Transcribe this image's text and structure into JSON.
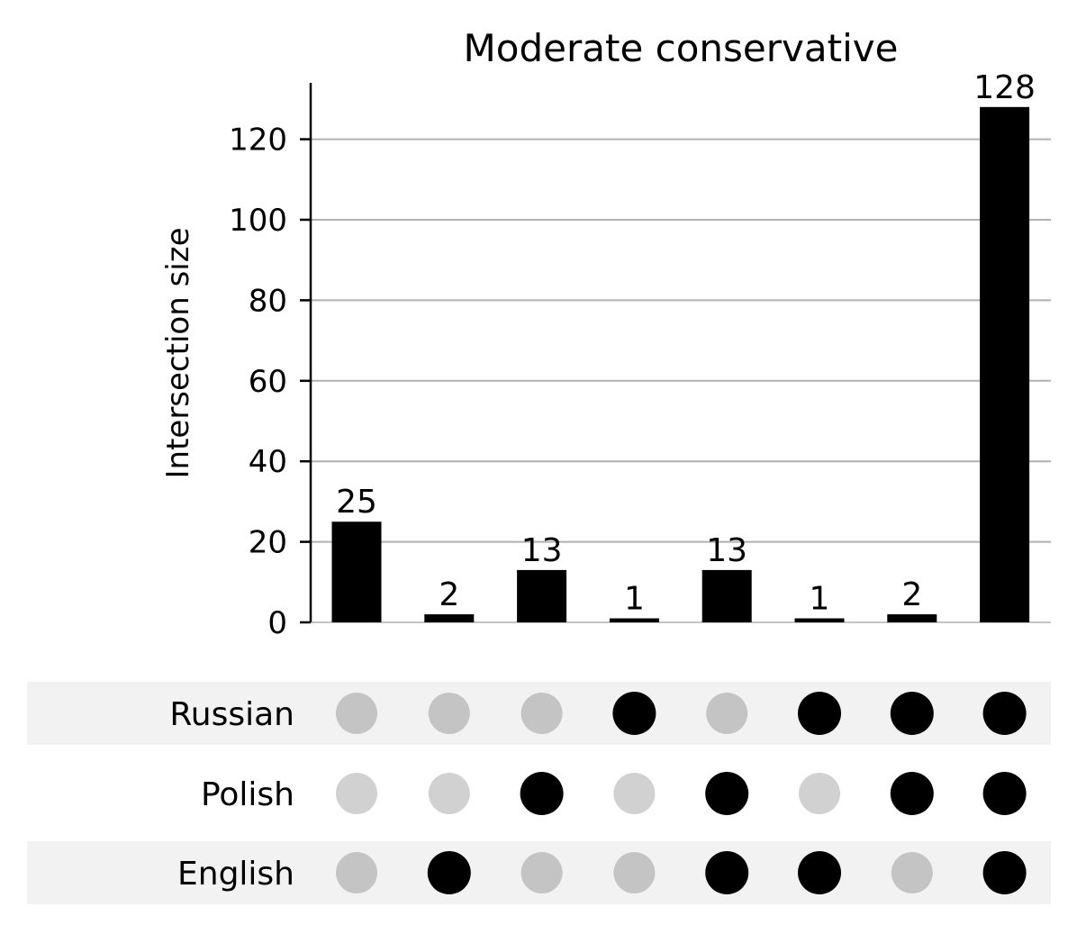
{
  "chart_data": {
    "type": "bar",
    "subtype": "upset",
    "title": "Moderate conservative",
    "ylabel": "Intersection size",
    "xlabel": "",
    "ylim": [
      0,
      134
    ],
    "yticks": [
      0,
      20,
      40,
      60,
      80,
      100,
      120
    ],
    "grid": true,
    "sets": [
      "Russian",
      "Polish",
      "English"
    ],
    "intersections": [
      {
        "value": 25,
        "members": {
          "Russian": false,
          "Polish": false,
          "English": false
        }
      },
      {
        "value": 2,
        "members": {
          "Russian": false,
          "Polish": false,
          "English": true
        }
      },
      {
        "value": 13,
        "members": {
          "Russian": false,
          "Polish": true,
          "English": false
        }
      },
      {
        "value": 1,
        "members": {
          "Russian": true,
          "Polish": false,
          "English": false
        }
      },
      {
        "value": 13,
        "members": {
          "Russian": false,
          "Polish": true,
          "English": true
        }
      },
      {
        "value": 1,
        "members": {
          "Russian": true,
          "Polish": false,
          "English": true
        }
      },
      {
        "value": 2,
        "members": {
          "Russian": true,
          "Polish": true,
          "English": false
        }
      },
      {
        "value": 128,
        "members": {
          "Russian": true,
          "Polish": true,
          "English": true
        }
      }
    ],
    "colors": {
      "bar": "#000000",
      "dot_active": "#000000",
      "dot_inactive_shaded_row": "#c4c4c4",
      "dot_inactive_plain_row": "#d1d1d1",
      "grid": "#b0b0b0",
      "row_shade": "#f2f2f2"
    }
  }
}
